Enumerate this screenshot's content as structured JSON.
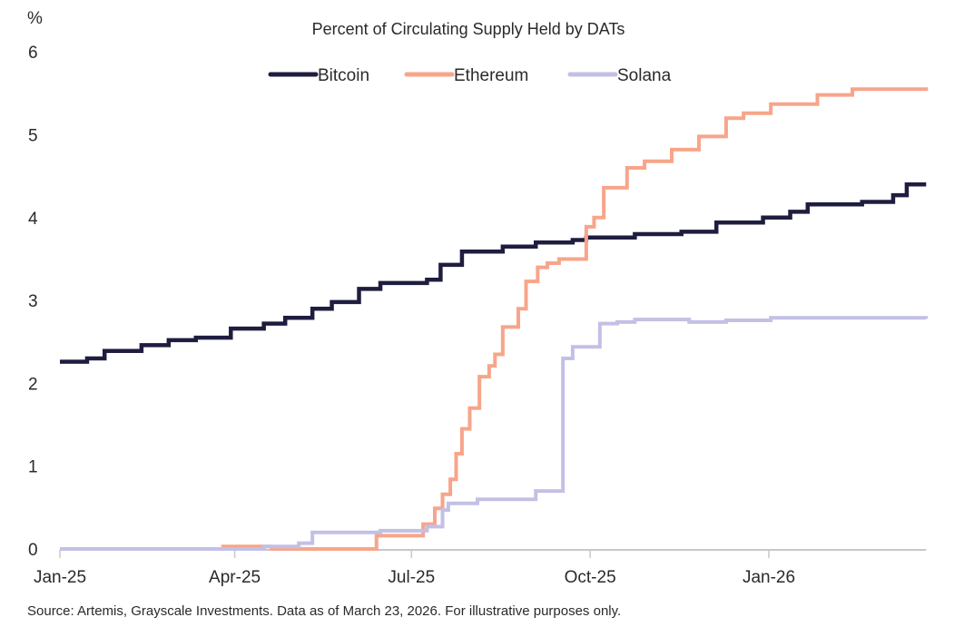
{
  "chart_data": {
    "type": "line",
    "title": "Percent of Circulating Supply Held by DATs",
    "ylabel": "%",
    "ylim": [
      0,
      6
    ],
    "yticks": [
      "0",
      "1",
      "2",
      "3",
      "4",
      "5",
      "6"
    ],
    "xlim": [
      "2025-01-01",
      "2026-03-23"
    ],
    "xticks": [
      {
        "label": "Jan-25",
        "date": "2025-01-01"
      },
      {
        "label": "Apr-25",
        "date": "2025-04-01"
      },
      {
        "label": "Jul-25",
        "date": "2025-07-01"
      },
      {
        "label": "Oct-25",
        "date": "2025-10-01"
      },
      {
        "label": "Jan-26",
        "date": "2026-01-01"
      }
    ],
    "grid": false,
    "legend": "top-center",
    "step": true,
    "series": [
      {
        "name": "Bitcoin",
        "color": "#1f1d3f",
        "points": [
          [
            "2025-01-01",
            2.26
          ],
          [
            "2025-01-15",
            2.3
          ],
          [
            "2025-01-24",
            2.39
          ],
          [
            "2025-02-12",
            2.46
          ],
          [
            "2025-02-26",
            2.52
          ],
          [
            "2025-03-12",
            2.55
          ],
          [
            "2025-03-30",
            2.66
          ],
          [
            "2025-04-16",
            2.72
          ],
          [
            "2025-04-27",
            2.79
          ],
          [
            "2025-05-11",
            2.9
          ],
          [
            "2025-05-21",
            2.98
          ],
          [
            "2025-06-04",
            3.14
          ],
          [
            "2025-06-15",
            3.21
          ],
          [
            "2025-07-09",
            3.25
          ],
          [
            "2025-07-16",
            3.43
          ],
          [
            "2025-07-27",
            3.59
          ],
          [
            "2025-08-17",
            3.65
          ],
          [
            "2025-09-03",
            3.7
          ],
          [
            "2025-09-22",
            3.73
          ],
          [
            "2025-09-29",
            3.76
          ],
          [
            "2025-10-24",
            3.8
          ],
          [
            "2025-11-17",
            3.83
          ],
          [
            "2025-12-05",
            3.94
          ],
          [
            "2025-12-29",
            4.0
          ],
          [
            "2026-01-12",
            4.07
          ],
          [
            "2026-01-21",
            4.16
          ],
          [
            "2026-02-18",
            4.19
          ],
          [
            "2026-03-06",
            4.27
          ],
          [
            "2026-03-13",
            4.4
          ],
          [
            "2026-03-23",
            4.4
          ]
        ]
      },
      {
        "name": "Ethereum",
        "color": "#f7a58a",
        "points": [
          [
            "2025-01-01",
            0.0
          ],
          [
            "2025-03-26",
            0.03
          ],
          [
            "2025-04-20",
            0.0
          ],
          [
            "2025-06-13",
            0.16
          ],
          [
            "2025-07-07",
            0.3
          ],
          [
            "2025-07-13",
            0.49
          ],
          [
            "2025-07-17",
            0.66
          ],
          [
            "2025-07-21",
            0.84
          ],
          [
            "2025-07-24",
            1.15
          ],
          [
            "2025-07-27",
            1.45
          ],
          [
            "2025-07-31",
            1.7
          ],
          [
            "2025-08-05",
            2.08
          ],
          [
            "2025-08-10",
            2.21
          ],
          [
            "2025-08-13",
            2.35
          ],
          [
            "2025-08-17",
            2.68
          ],
          [
            "2025-08-25",
            2.9
          ],
          [
            "2025-08-29",
            3.23
          ],
          [
            "2025-09-04",
            3.4
          ],
          [
            "2025-09-09",
            3.45
          ],
          [
            "2025-09-15",
            3.5
          ],
          [
            "2025-09-29",
            3.89
          ],
          [
            "2025-10-03",
            4.0
          ],
          [
            "2025-10-08",
            4.36
          ],
          [
            "2025-10-20",
            4.6
          ],
          [
            "2025-10-29",
            4.68
          ],
          [
            "2025-11-12",
            4.82
          ],
          [
            "2025-11-26",
            4.98
          ],
          [
            "2025-12-10",
            5.2
          ],
          [
            "2025-12-19",
            5.26
          ],
          [
            "2026-01-02",
            5.37
          ],
          [
            "2026-01-26",
            5.48
          ],
          [
            "2026-02-13",
            5.55
          ],
          [
            "2026-03-23",
            5.53
          ]
        ]
      },
      {
        "name": "Solana",
        "color": "#c3c0e6",
        "points": [
          [
            "2025-01-01",
            0.0
          ],
          [
            "2025-04-16",
            0.03
          ],
          [
            "2025-05-04",
            0.07
          ],
          [
            "2025-05-11",
            0.2
          ],
          [
            "2025-06-15",
            0.22
          ],
          [
            "2025-07-09",
            0.27
          ],
          [
            "2025-07-17",
            0.47
          ],
          [
            "2025-07-20",
            0.55
          ],
          [
            "2025-08-04",
            0.6
          ],
          [
            "2025-09-03",
            0.7
          ],
          [
            "2025-09-17",
            2.3
          ],
          [
            "2025-09-22",
            2.44
          ],
          [
            "2025-10-06",
            2.72
          ],
          [
            "2025-10-15",
            2.74
          ],
          [
            "2025-10-24",
            2.77
          ],
          [
            "2025-11-21",
            2.74
          ],
          [
            "2025-12-10",
            2.76
          ],
          [
            "2026-01-02",
            2.79
          ],
          [
            "2026-03-23",
            2.78
          ]
        ]
      }
    ],
    "source": "Source: Artemis, Grayscale Investments. Data as of March 23, 2026. For illustrative purposes only."
  }
}
